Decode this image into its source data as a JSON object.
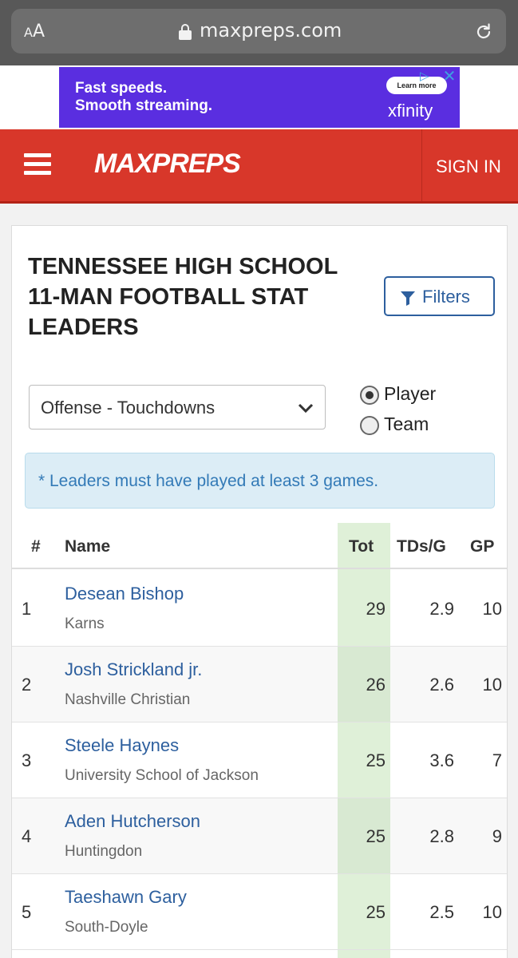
{
  "browser": {
    "text_size_small": "A",
    "text_size_large": "A",
    "url": "maxpreps.com"
  },
  "ad": {
    "headline_line1": "Fast speeds.",
    "headline_line2": "Smooth streaming.",
    "cta": "Learn more",
    "brand": "xfinity"
  },
  "header": {
    "logo": "MAXPREPS",
    "sign_in": "SIGN IN",
    "color": "#d8372a"
  },
  "page": {
    "title": "TENNESSEE HIGH SCHOOL 11-MAN FOOTBALL STAT LEADERS",
    "filters_label": "Filters",
    "stat_select_value": "Offense - Touchdowns",
    "radio_player": "Player",
    "radio_team": "Team",
    "radio_selected": "Player",
    "notice": "* Leaders must have played at least 3 games."
  },
  "table": {
    "headers": {
      "rank": "#",
      "name": "Name",
      "tot": "Tot",
      "tds_per_game": "TDs/G",
      "gp": "GP"
    },
    "rows": [
      {
        "rank": "1",
        "name": "Desean Bishop",
        "school": "Karns",
        "tot": "29",
        "tds_per_game": "2.9",
        "gp": "10"
      },
      {
        "rank": "2",
        "name": "Josh Strickland jr.",
        "school": "Nashville Christian",
        "tot": "26",
        "tds_per_game": "2.6",
        "gp": "10"
      },
      {
        "rank": "3",
        "name": "Steele Haynes",
        "school": "University School of Jackson",
        "tot": "25",
        "tds_per_game": "3.6",
        "gp": "7"
      },
      {
        "rank": "4",
        "name": "Aden Hutcherson",
        "school": "Huntingdon",
        "tot": "25",
        "tds_per_game": "2.8",
        "gp": "9"
      },
      {
        "rank": "5",
        "name": "Taeshawn Gary",
        "school": "South-Doyle",
        "tot": "25",
        "tds_per_game": "2.5",
        "gp": "10"
      }
    ]
  }
}
